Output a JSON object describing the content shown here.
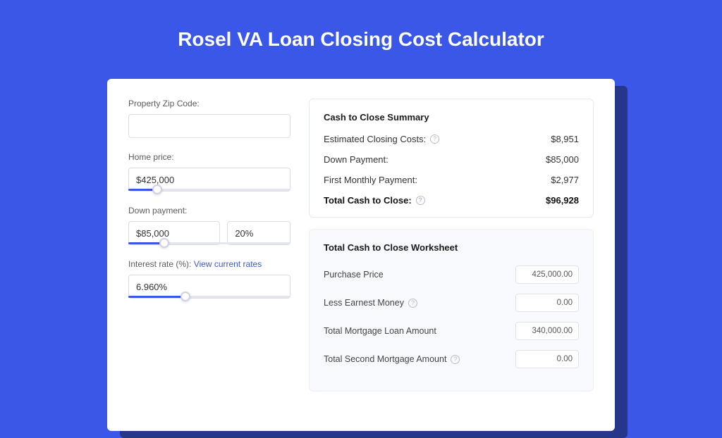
{
  "colors": {
    "page_bg": "#3a57e8",
    "card_shadow": "#27368a",
    "card_bg": "#ffffff",
    "input_border": "#dcdde2",
    "slider_track": "#e3e6ee",
    "slider_fill": "#3a57e8",
    "link": "#3a57e8",
    "summary_border": "#e7e9f0",
    "worksheet_bg": "#f8f9fc",
    "worksheet_border": "#eef0f6",
    "help_icon": "#b8bcc9",
    "text_primary": "#1a1a1a",
    "text_muted": "#5a5a5a"
  },
  "title": "Rosel VA Loan Closing Cost Calculator",
  "form": {
    "zip": {
      "label": "Property Zip Code:",
      "value": ""
    },
    "home_price": {
      "label": "Home price:",
      "value": "$425,000",
      "slider_pct": 18
    },
    "down_payment": {
      "label": "Down payment:",
      "value": "$85,000",
      "pct_value": "20%",
      "slider_pct": 22
    },
    "interest": {
      "label": "Interest rate (%):",
      "link_text": "View current rates",
      "value": "6.960%",
      "slider_pct": 35
    }
  },
  "summary": {
    "title": "Cash to Close Summary",
    "rows": [
      {
        "label": "Estimated Closing Costs:",
        "help": true,
        "value": "$8,951"
      },
      {
        "label": "Down Payment:",
        "help": false,
        "value": "$85,000"
      },
      {
        "label": "First Monthly Payment:",
        "help": false,
        "value": "$2,977"
      }
    ],
    "total": {
      "label": "Total Cash to Close:",
      "help": true,
      "value": "$96,928"
    }
  },
  "worksheet": {
    "title": "Total Cash to Close Worksheet",
    "rows": [
      {
        "label": "Purchase Price",
        "help": false,
        "value": "425,000.00"
      },
      {
        "label": "Less Earnest Money",
        "help": true,
        "value": "0.00"
      },
      {
        "label": "Total Mortgage Loan Amount",
        "help": false,
        "value": "340,000.00"
      },
      {
        "label": "Total Second Mortgage Amount",
        "help": true,
        "value": "0.00"
      }
    ]
  }
}
